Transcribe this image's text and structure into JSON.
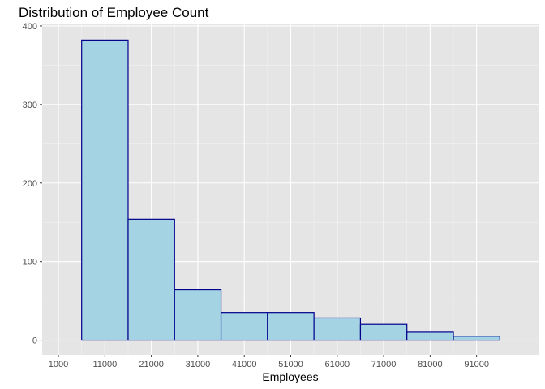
{
  "chart_data": {
    "type": "bar",
    "title": "Distribution of Employee Count",
    "xlabel": "Employees",
    "ylabel": "",
    "x_tick_labels": [
      "1000",
      "11000",
      "21000",
      "31000",
      "41000",
      "51000",
      "61000",
      "71000",
      "81000",
      "91000"
    ],
    "x_ticks": [
      1000,
      11000,
      21000,
      31000,
      41000,
      51000,
      61000,
      71000,
      81000,
      91000
    ],
    "y_ticks": [
      0,
      100,
      200,
      300,
      400
    ],
    "y_tick_labels": [
      "0",
      "100",
      "200",
      "300",
      "400"
    ],
    "xlim": [
      -2500,
      104500
    ],
    "ylim": [
      -19,
      402
    ],
    "grid": true,
    "legend": "none",
    "bins": [
      {
        "start": 6000,
        "end": 16000,
        "count": 382
      },
      {
        "start": 16000,
        "end": 26000,
        "count": 154
      },
      {
        "start": 26000,
        "end": 36000,
        "count": 64
      },
      {
        "start": 36000,
        "end": 46000,
        "count": 35
      },
      {
        "start": 46000,
        "end": 56000,
        "count": 35
      },
      {
        "start": 56000,
        "end": 66000,
        "count": 28
      },
      {
        "start": 66000,
        "end": 76000,
        "count": 20
      },
      {
        "start": 76000,
        "end": 86000,
        "count": 10
      },
      {
        "start": 86000,
        "end": 96000,
        "count": 5
      }
    ],
    "colors": {
      "bar_fill": "#a4d3e4",
      "bar_stroke": "#00008b",
      "panel_bg": "#e5e5e5",
      "grid_major": "#ffffff",
      "grid_minor": "#f2f2f2",
      "tick_text": "#4d4d4d",
      "tick_mark": "#333333"
    }
  }
}
